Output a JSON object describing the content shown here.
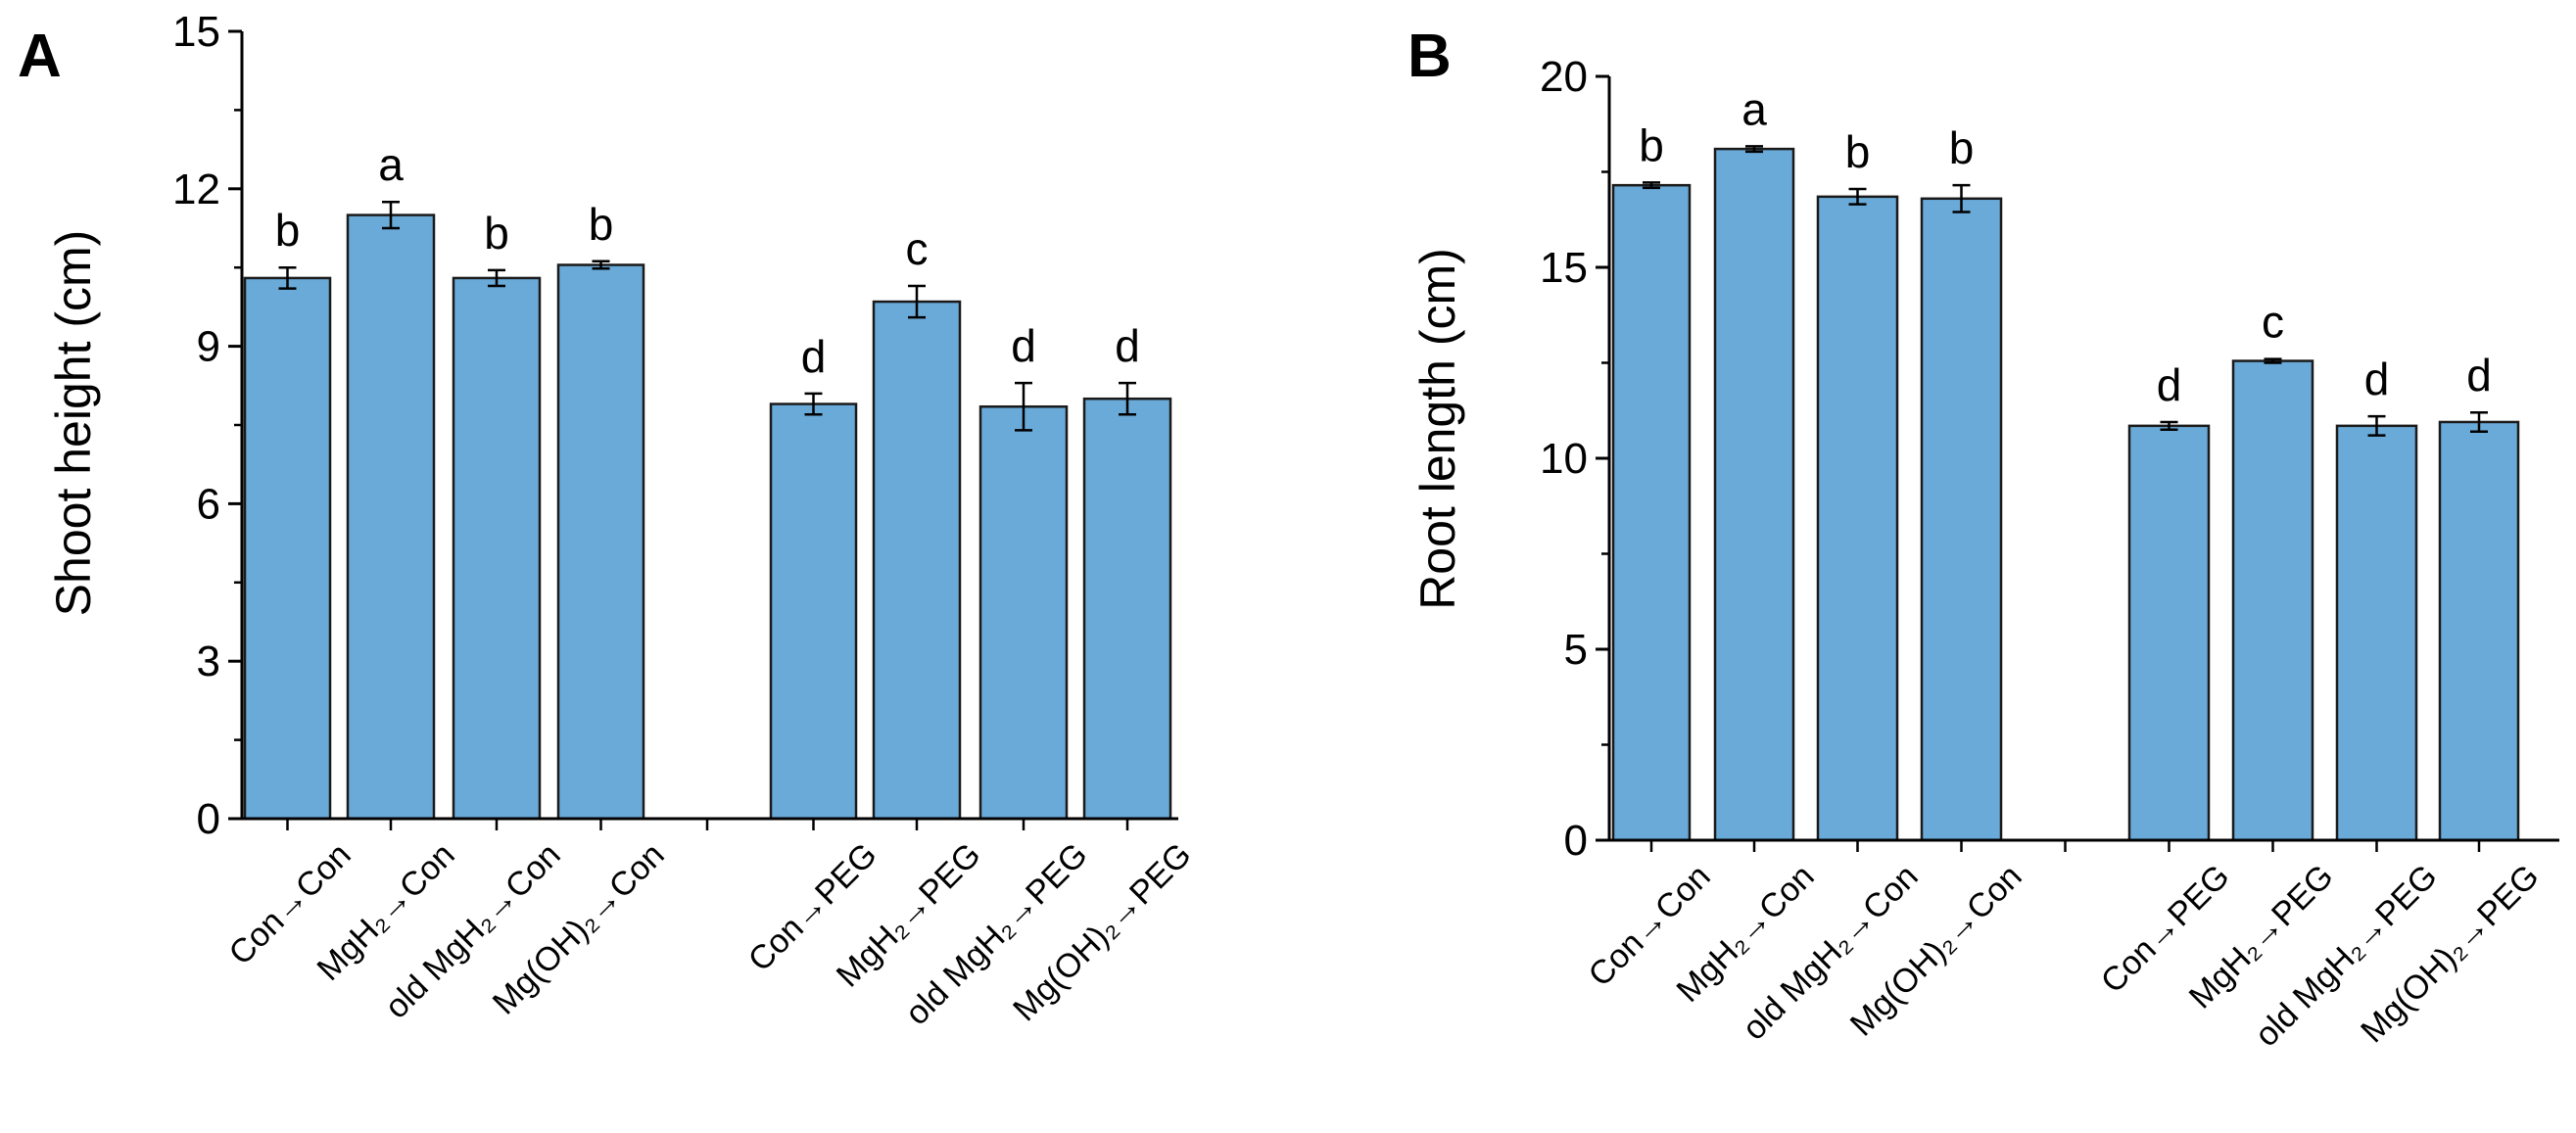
{
  "chart_data": [
    {
      "type": "bar",
      "panel": "A",
      "ylabel": "Shoot height (cm)",
      "xlabel": "",
      "ylim": [
        0,
        15
      ],
      "yticks": [
        "0",
        "3",
        "6",
        "9",
        "12",
        "15"
      ],
      "categories": [
        "Con→Con",
        "MgH₂→Con",
        "old MgH₂→Con",
        "Mg(OH)₂→Con",
        "Con→PEG",
        "MgH₂→PEG",
        "old MgH₂→PEG",
        "Mg(OH)₂→PEG"
      ],
      "values": [
        10.3,
        11.5,
        10.3,
        10.55,
        7.9,
        9.85,
        7.85,
        8.0
      ],
      "errors": [
        0.2,
        0.25,
        0.15,
        0.07,
        0.2,
        0.3,
        0.45,
        0.3
      ],
      "significance": [
        "b",
        "a",
        "b",
        "b",
        "d",
        "c",
        "d",
        "d"
      ],
      "bar_color": "#6aaad8",
      "edge_color": "#1a1a1a"
    },
    {
      "type": "bar",
      "panel": "B",
      "ylabel": "Root length (cm)",
      "xlabel": "",
      "ylim": [
        0,
        20
      ],
      "yticks": [
        "0",
        "5",
        "10",
        "15",
        "20"
      ],
      "categories": [
        "Con→Con",
        "MgH₂→Con",
        "old MgH₂→Con",
        "Mg(OH)₂→Con",
        "Con→PEG",
        "MgH₂→PEG",
        "old MgH₂→PEG",
        "Mg(OH)₂→PEG"
      ],
      "values": [
        17.15,
        18.1,
        16.85,
        16.8,
        10.85,
        12.55,
        10.85,
        10.95
      ],
      "errors": [
        0.07,
        0.07,
        0.2,
        0.35,
        0.1,
        0.05,
        0.25,
        0.25
      ],
      "significance": [
        "b",
        "a",
        "b",
        "b",
        "d",
        "c",
        "d",
        "d"
      ],
      "bar_color": "#6aaad8",
      "edge_color": "#1a1a1a"
    }
  ]
}
